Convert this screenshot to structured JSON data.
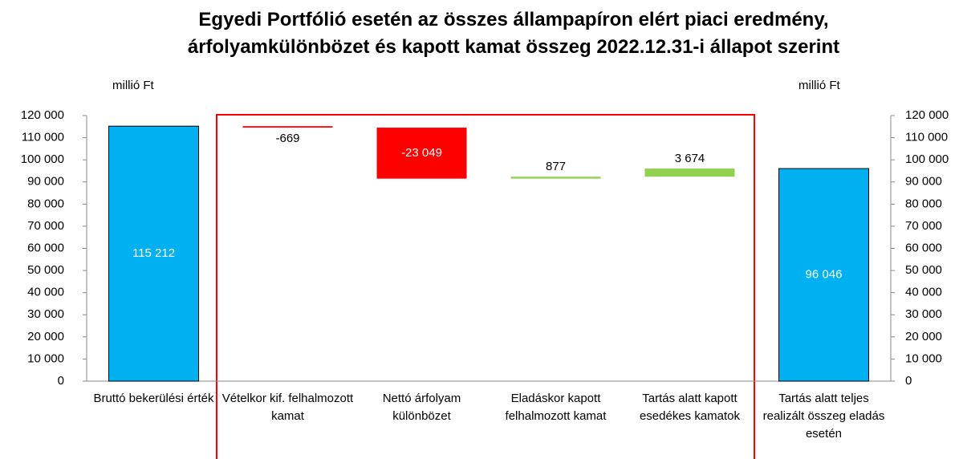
{
  "chart_data": {
    "type": "waterfall",
    "title": "Egyedi Portfólió esetén az összes állampapíron elért piaci eredmény, árfolyamkülönbözet és kapott kamat összeg 2022.12.31-i állapot szerint",
    "ylabel": "millió Ft",
    "y2label": "millió Ft",
    "categories": [
      "Bruttó bekerülési érték",
      "Vételkor kif. felhalmozott kamat",
      "Nettó árfolyam különbözet",
      "Eladáskor kapott felhalmozott kamat",
      "Tartás alatt kapott esedékes kamatok",
      "Tartás alatt teljes realizált összeg eladás esetén"
    ],
    "measure": [
      "absolute",
      "relative",
      "relative",
      "relative",
      "relative",
      "absolute"
    ],
    "values": [
      115212,
      -669,
      -23049,
      877,
      3674,
      96046
    ],
    "value_labels": [
      "115 212",
      "-669",
      "-23 049",
      "877",
      "3 674",
      "96 046"
    ],
    "colors": [
      "#00b0f0",
      "#ff0000",
      "#ff0000",
      "#92d050",
      "#92d050",
      "#00b0f0"
    ],
    "ylim": [
      0,
      120000
    ],
    "yticks": [
      0,
      {
        "value": 10000,
        "label": "10 000"
      },
      {
        "value": 20000,
        "label": "20 000"
      },
      {
        "value": 30000,
        "label": "30 000"
      },
      {
        "value": 40000,
        "label": "40 000"
      },
      {
        "value": 50000,
        "label": "50 000"
      },
      {
        "value": 60000,
        "label": "60 000"
      },
      {
        "value": 70000,
        "label": "70 000"
      },
      {
        "value": 80000,
        "label": "80 000"
      },
      {
        "value": 90000,
        "label": "90 000"
      },
      {
        "value": 100000,
        "label": "100 000"
      },
      {
        "value": 110000,
        "label": "110 000"
      },
      {
        "value": 120000,
        "label": "120 000"
      }
    ],
    "y2lim": [
      0,
      120000
    ],
    "y2ticks": [
      0,
      {
        "value": 10000,
        "label": "10 000"
      },
      {
        "value": 20000,
        "label": "20 000"
      },
      {
        "value": 30000,
        "label": "30 000"
      },
      {
        "value": 40000,
        "label": "40 000"
      },
      {
        "value": 50000,
        "label": "50 000"
      },
      {
        "value": 60000,
        "label": "60 000"
      },
      {
        "value": 70000,
        "label": "70 000"
      },
      {
        "value": 80000,
        "label": "80 000"
      },
      {
        "value": 90000,
        "label": "90 000"
      },
      {
        "value": 100000,
        "label": "100 000"
      },
      {
        "value": 110000,
        "label": "110 000"
      },
      {
        "value": 120000,
        "label": "120 000"
      }
    ]
  }
}
